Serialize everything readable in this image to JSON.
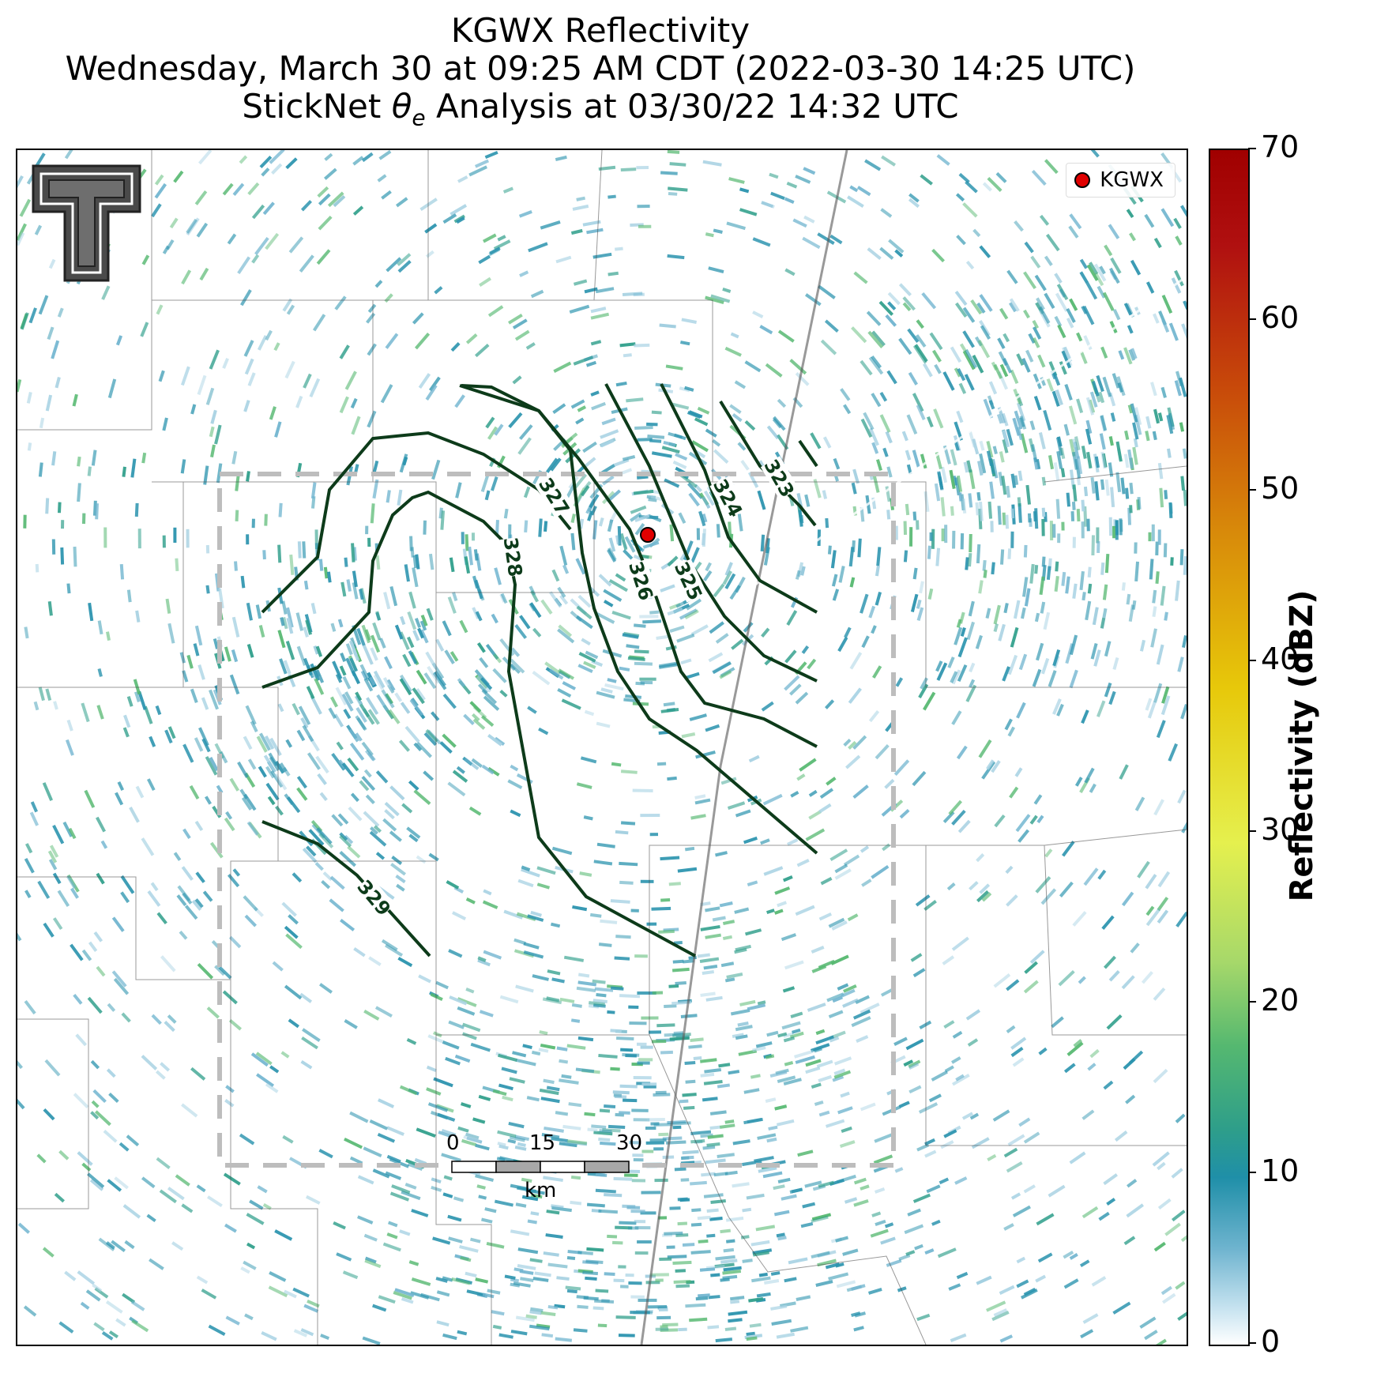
{
  "title": {
    "line1": "KGWX Reflectivity",
    "line2": "Wednesday, March 30 at 09:25 AM CDT (2022-03-30 14:25 UTC)",
    "line3": "StickNet θe Analysis at 03/30/22 14:32 UTC"
  },
  "legend": {
    "label": "KGWX",
    "marker_color": "#e00000"
  },
  "colorbar": {
    "title": "Reflectivity (dBZ)",
    "ticks": [
      "0",
      "10",
      "20",
      "30",
      "40",
      "50",
      "60",
      "70"
    ],
    "range": [
      0,
      70
    ]
  },
  "scale_bar": {
    "ticks": [
      "0",
      "15",
      "30"
    ],
    "unit": "km"
  },
  "contours": {
    "color": "#0d3b1a",
    "labels": [
      "323",
      "324",
      "325",
      "326",
      "327",
      "328",
      "329"
    ]
  },
  "radar": {
    "site": "KGWX",
    "echo_color": "#2a93ae"
  },
  "logo": {
    "text": "T"
  }
}
